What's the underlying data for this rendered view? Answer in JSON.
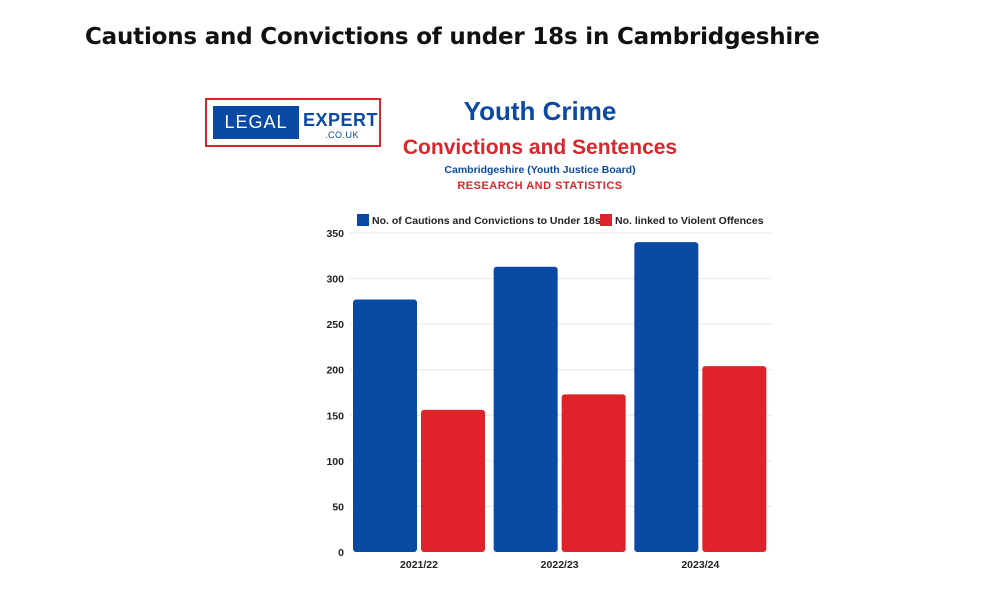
{
  "page": {
    "heading": "Cautions and Convictions of under 18s in Cambridgeshire"
  },
  "logo": {
    "left_text": "LEGAL",
    "right_text": "EXPERT",
    "sub_text": ".CO.UK"
  },
  "colors": {
    "series1": "#0a4aa5",
    "series2": "#e0232a",
    "grid": "#e6e6e6"
  },
  "chart_data": {
    "type": "bar",
    "title": "Youth Crime",
    "subtitle": "Convictions and Sentences",
    "source": "Cambridgeshire (Youth Justice Board)",
    "note": "RESEARCH AND STATISTICS",
    "categories": [
      "2021/22",
      "2022/23",
      "2023/24"
    ],
    "series": [
      {
        "name": "No. of Cautions and Convictions to Under 18s",
        "values": [
          277,
          313,
          340
        ]
      },
      {
        "name": "No. linked to Violent Offences",
        "values": [
          156,
          173,
          204
        ]
      }
    ],
    "ylim": [
      0,
      350
    ],
    "yticks": [
      0,
      50,
      100,
      150,
      200,
      250,
      300,
      350
    ],
    "grid": true,
    "legend": "top",
    "xlabel": "",
    "ylabel": ""
  }
}
